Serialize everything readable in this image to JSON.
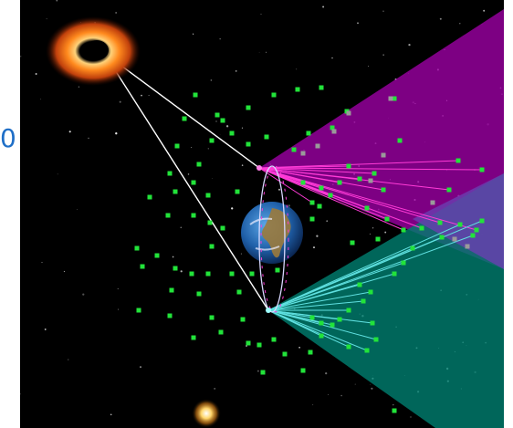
{
  "edge_text": "0",
  "scene": {
    "background_color": "#000000",
    "beam_colors": {
      "upper": "#b000b0",
      "lower": "#008a7a",
      "overlap": "#6a3fb0"
    },
    "link_colors": {
      "upper": "#ff3bd7",
      "lower": "#5fe0e0",
      "ground": "#ffffff"
    },
    "marker_color": "#22e33a",
    "icons": [
      "black-hole-icon",
      "earth-icon",
      "satellite-upper-icon",
      "satellite-lower-icon",
      "sun-icon"
    ]
  }
}
